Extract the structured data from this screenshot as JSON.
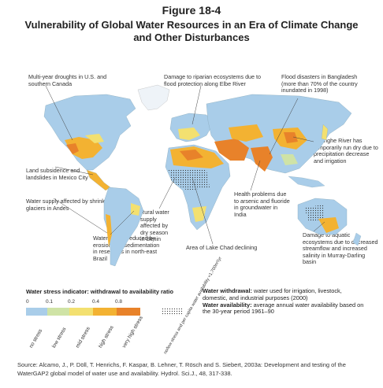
{
  "figure_number": "Figure 18-4",
  "title": "Vulnerability of Global Water Resources in an Era of Climate Change and Other Disturbances",
  "annotations": {
    "us_droughts": "Multi-year droughts in U.S. and southern Canada",
    "elbe": "Damage to riparian ecosystems due to flood protection along Elbe River",
    "bangladesh": "Flood disasters in Bangladesh (more than 70% of the country inundated in 1998)",
    "huanghe": "Huanghe River has temporarily run dry due to precipitation decrease and irrigation",
    "mexico": "Land subsidence and landslides in Mexico City",
    "andes": "Water supply affected by shrinking glaciers in Andes",
    "benin": "Rural water supply affected by dry season in Benin",
    "india": "Health problems due to arsenic and fluoride in groundwater in India",
    "chad": "Area of Lake Chad declining",
    "murray": "Damage to aquatic ecosystems due to decreased streamflow and increased salinity in Murray-Darling basin",
    "brazil": "Water supply reduced by erosion and sedimentation in reservoirs in north-east Brazil"
  },
  "legend": {
    "title": "Water stress indicator: withdrawal to availability ratio",
    "ticks": [
      "0",
      "0.1",
      "0.2",
      "0.4",
      "0.8"
    ],
    "classes": [
      {
        "label": "no stress",
        "color": "#a9cde9"
      },
      {
        "label": "low stress",
        "color": "#cfe3a6"
      },
      {
        "label": "mid stress",
        "color": "#f3e070"
      },
      {
        "label": "high stress",
        "color": "#f3b232"
      },
      {
        "label": "very high stress",
        "color": "#e8822a"
      },
      {
        "label": "no/low stress and per capita water availability <1,700m³/yr",
        "color": "dots"
      }
    ],
    "withdrawal_label": "Water withdrawal:",
    "withdrawal_text": "water used for irrigation, livestock, domestic, and industrial purposes (2000)",
    "availability_label": "Water availability:",
    "availability_text": "average annual water availability based on the 30-year period 1961–90"
  },
  "source": "Source: Alcamo, J., P. Döll, T. Henrichs, F. Kaspar, B. Lehner, T. Rösch and S. Siebert, 2003a: Development and testing of the WaterGAP2 global model of water use and availability. Hydrol. Sci.J., 48, 317-338.",
  "colors": {
    "ocean": "#ffffff",
    "no_stress": "#a9cde9",
    "low_stress": "#cfe3a6",
    "mid_stress": "#f3e070",
    "high_stress": "#f3b232",
    "very_high_stress": "#e8822a",
    "ice": "#eef3f8"
  }
}
